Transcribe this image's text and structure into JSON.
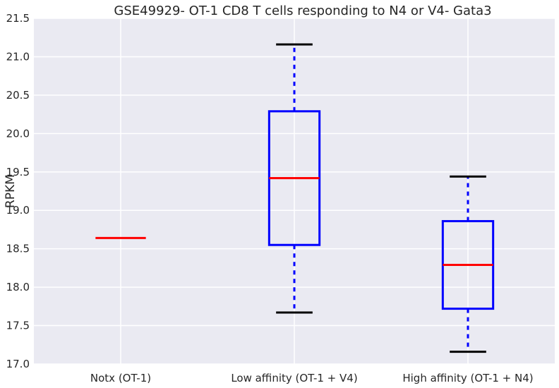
{
  "chart_data": {
    "type": "box",
    "title": "GSE49929- OT-1 CD8 T cells responding to N4 or V4- Gata3",
    "xlabel": "",
    "ylabel": "RPKM",
    "ylim": [
      17.0,
      21.5
    ],
    "yticks": [
      "17.0",
      "17.5",
      "18.0",
      "18.5",
      "19.0",
      "19.5",
      "20.0",
      "20.5",
      "21.0",
      "21.5"
    ],
    "categories": [
      "Notx (OT-1)",
      "Low affinity (OT-1 + V4)",
      "High affinity (OT-1 + N4)"
    ],
    "boxes": [
      {
        "category": "Notx (OT-1)",
        "whisker_low": 18.64,
        "q1": 18.64,
        "median": 18.64,
        "q3": 18.64,
        "whisker_high": 18.64
      },
      {
        "category": "Low affinity (OT-1 + V4)",
        "whisker_low": 17.67,
        "q1": 18.55,
        "median": 19.42,
        "q3": 20.29,
        "whisker_high": 21.16
      },
      {
        "category": "High affinity (OT-1 + N4)",
        "whisker_low": 17.16,
        "q1": 17.72,
        "median": 18.29,
        "q3": 18.86,
        "whisker_high": 19.44
      }
    ],
    "grid": true,
    "colors": {
      "background": "#EAEAF2",
      "grid": "#FFFFFF",
      "box": "#0000FF",
      "median": "#FF0000",
      "whisker": "#0000FF",
      "cap": "#000000"
    }
  }
}
